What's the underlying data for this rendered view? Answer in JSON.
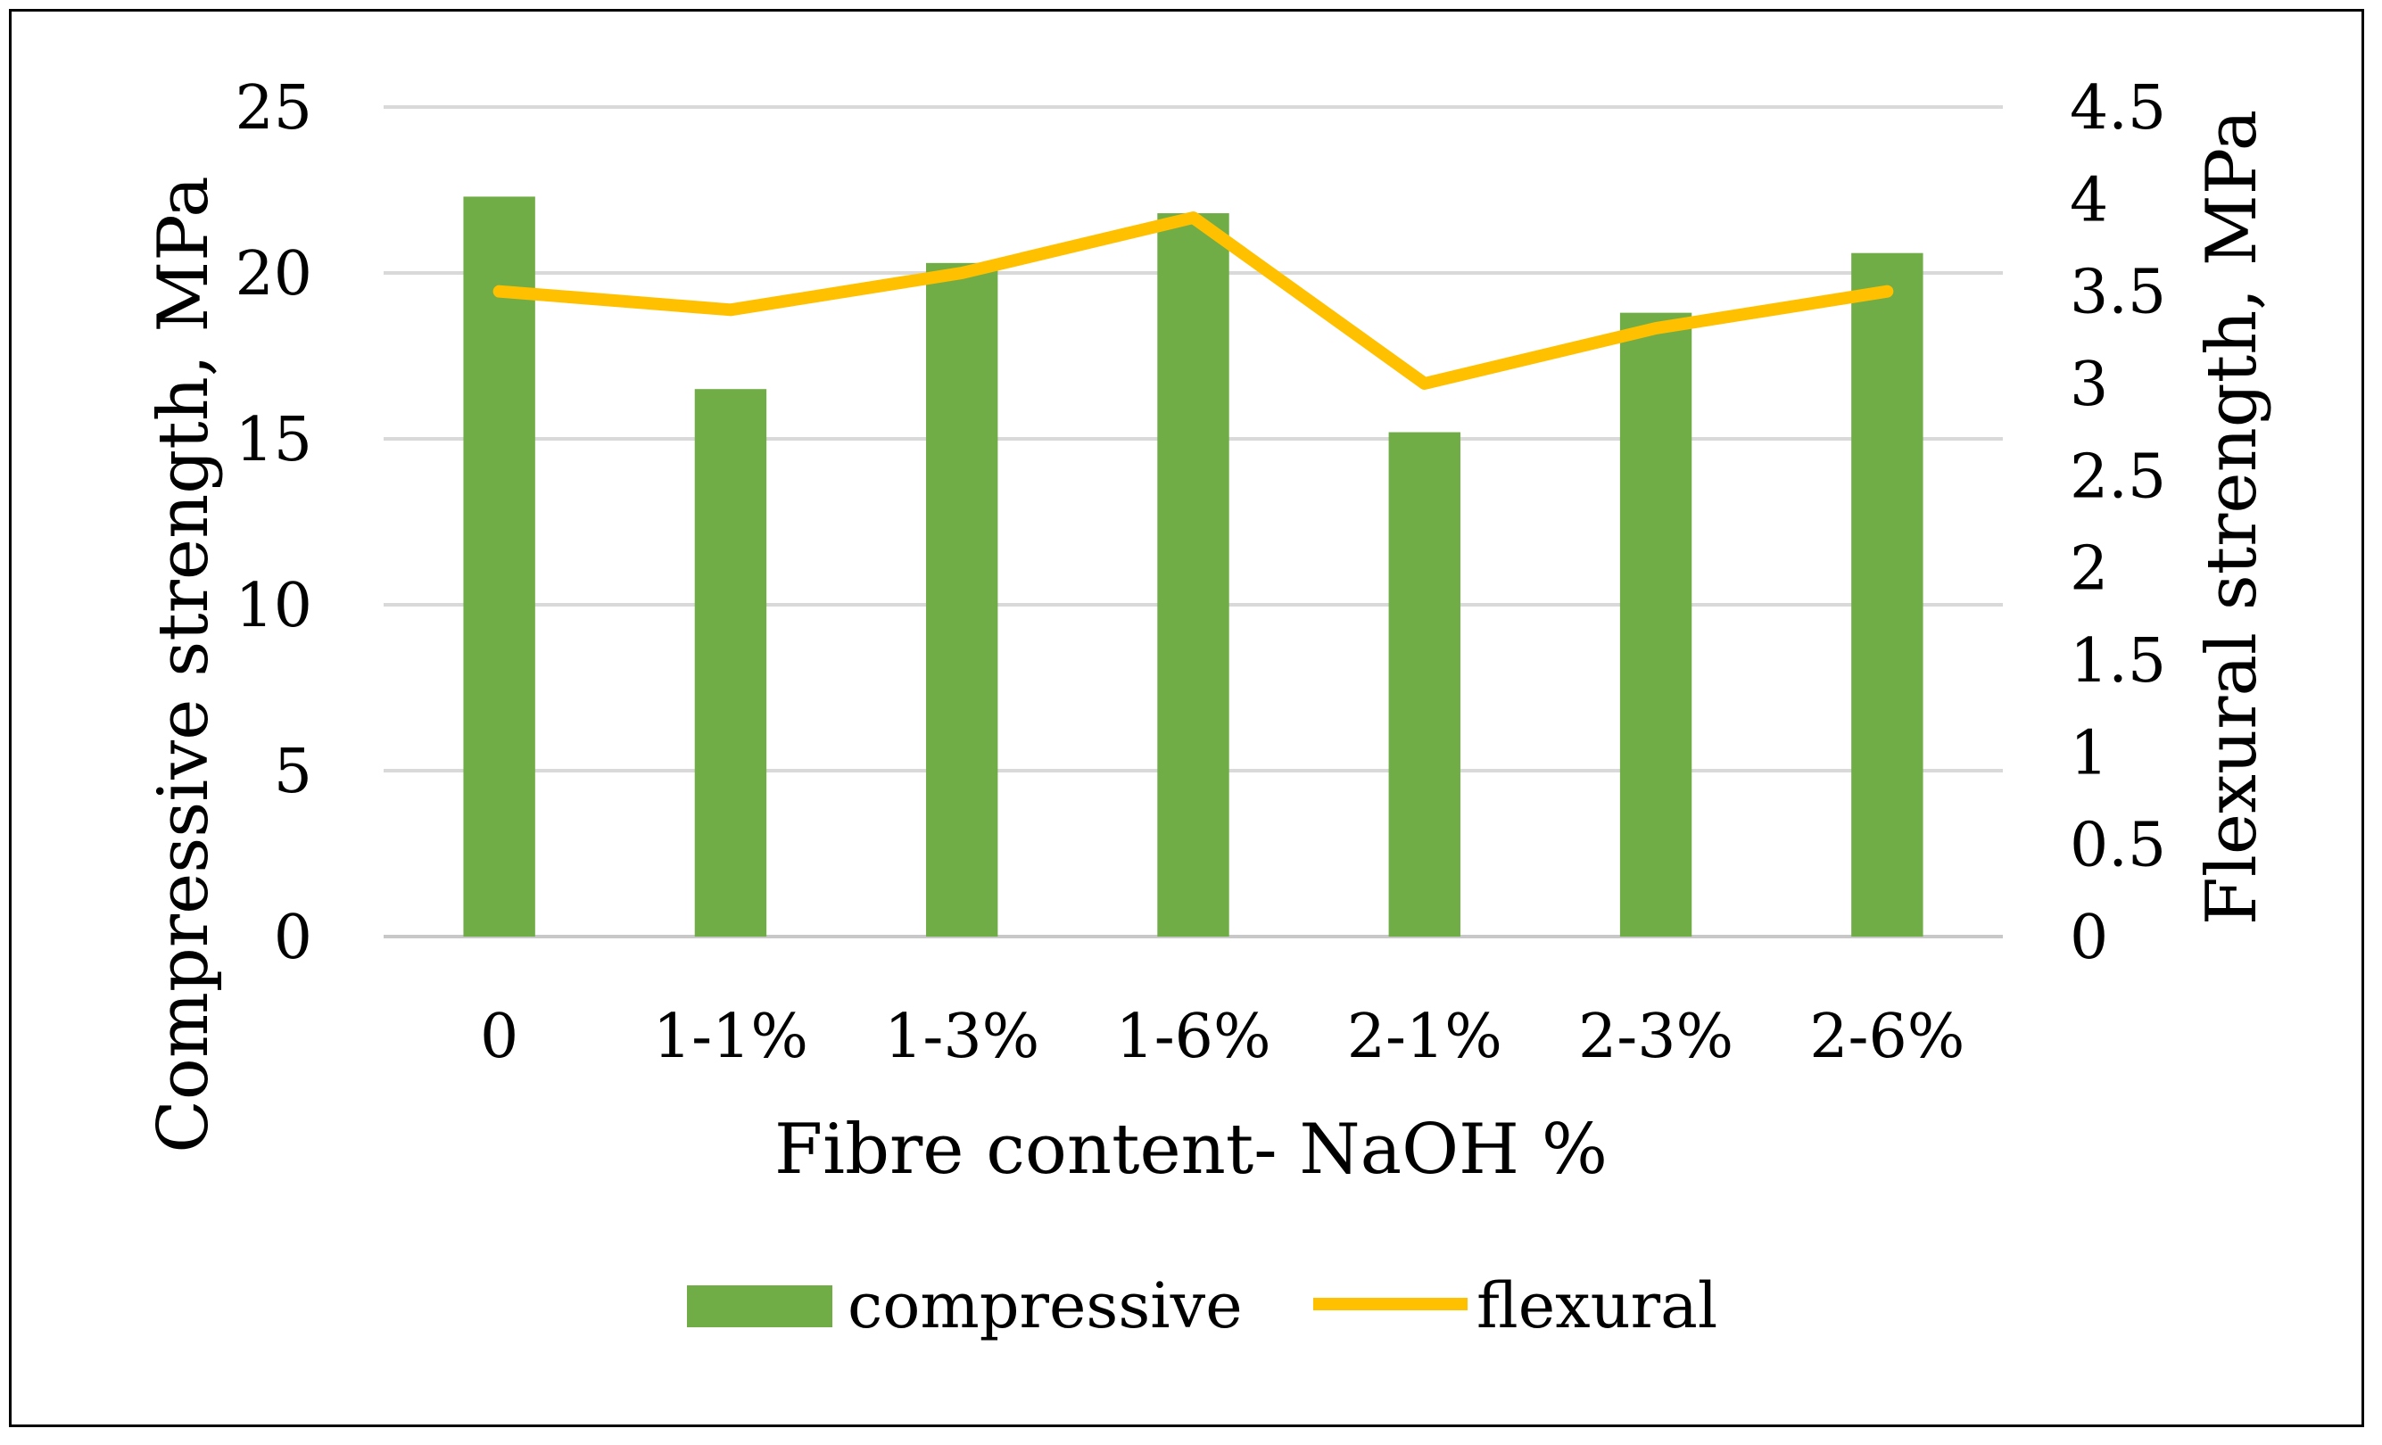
{
  "chart_data": {
    "type": "bar",
    "xlabel": "Fibre content- NaOH %",
    "ylabel": "Compressive strength, MPa",
    "y2label": "Flexural strength, MPa",
    "categories": [
      "0",
      "1-1%",
      "1-3%",
      "1-6%",
      "2-1%",
      "2-3%",
      "2-6%"
    ],
    "ylim": [
      0,
      25
    ],
    "yticks": [
      "0",
      "5",
      "10",
      "15",
      "20",
      "25"
    ],
    "y2lim": [
      0,
      4.5
    ],
    "y2ticks": [
      "0",
      "0.5",
      "1",
      "1.5",
      "2",
      "2.5",
      "3",
      "3.5",
      "4",
      "4.5"
    ],
    "grid": true,
    "legend": "bottom",
    "series": [
      {
        "name": "compressive",
        "type": "bar",
        "axis": "left",
        "color": "#70AD47",
        "values": [
          22.3,
          16.5,
          20.3,
          21.8,
          15.2,
          18.8,
          20.6
        ]
      },
      {
        "name": "flexural",
        "type": "line",
        "axis": "right",
        "color": "#FFC000",
        "values": [
          3.5,
          3.4,
          3.6,
          3.9,
          3.0,
          3.3,
          3.5
        ]
      }
    ]
  }
}
